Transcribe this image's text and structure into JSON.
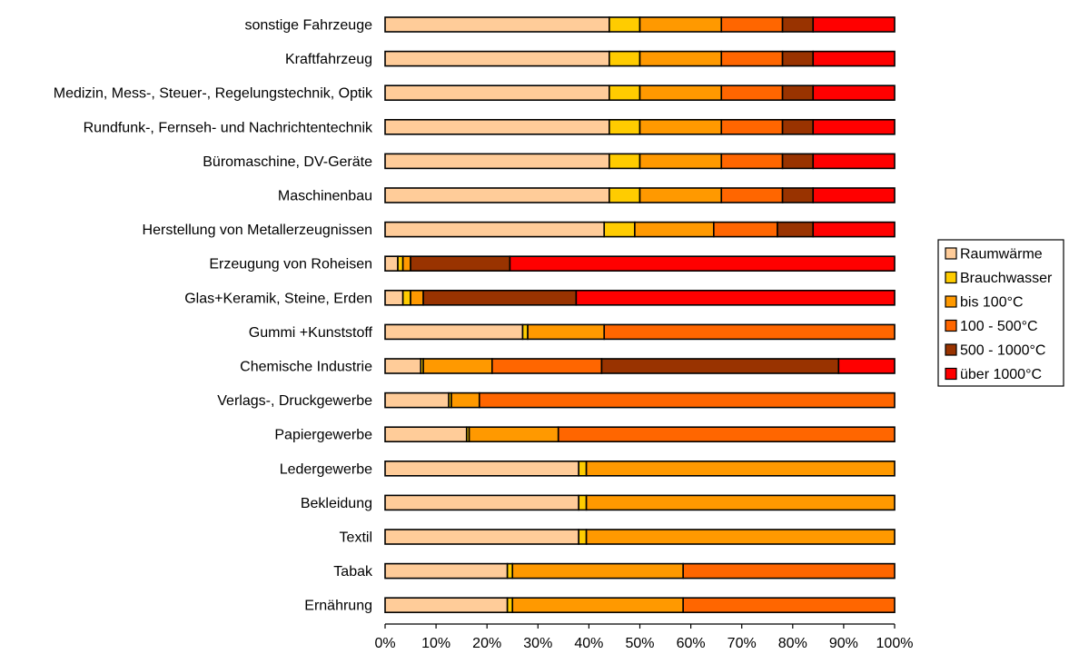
{
  "chart_data": {
    "type": "bar",
    "orientation": "horizontal",
    "stacked": "percent",
    "categories": [
      "sonstige Fahrzeuge",
      "Kraftfahrzeug",
      "Medizin, Mess-, Steuer-, Regelungstechnik, Optik",
      "Rundfunk-, Fernseh- und Nachrichtentechnik",
      "Büromaschine, DV-Geräte",
      "Maschinenbau",
      "Herstellung von Metallerzeugnissen",
      "Erzeugung von Roheisen",
      "Glas+Keramik, Steine, Erden",
      "Gummi +Kunststoff",
      "Chemische Industrie",
      "Verlags-, Druckgewerbe",
      "Papiergewerbe",
      "Ledergewerbe",
      "Bekleidung",
      "Textil",
      "Tabak",
      "Ernährung"
    ],
    "series": [
      {
        "name": "Raumwärme",
        "color": "#FFCC99",
        "values": [
          44,
          44,
          44,
          44,
          44,
          44,
          43,
          2.5,
          3.5,
          27,
          7,
          12.5,
          16,
          38,
          38,
          38,
          24,
          24
        ]
      },
      {
        "name": "Brauchwasser",
        "color": "#FFCC00",
        "values": [
          6,
          6,
          6,
          6,
          6,
          6,
          6,
          1,
          1.5,
          1,
          0.5,
          0.5,
          0.5,
          1.5,
          1.5,
          1.5,
          1,
          1
        ]
      },
      {
        "name": "bis 100°C",
        "color": "#FF9900",
        "values": [
          16,
          16,
          16,
          16,
          16,
          16,
          15.5,
          1.5,
          2.5,
          15,
          13.5,
          5.5,
          17.5,
          60.5,
          60.5,
          60.5,
          33.5,
          33.5
        ]
      },
      {
        "name": "100 - 500°C",
        "color": "#FF6600",
        "values": [
          12,
          12,
          12,
          12,
          12,
          12,
          12.5,
          0,
          0,
          57,
          21.5,
          81.5,
          66,
          0,
          0,
          0,
          41.5,
          41.5
        ]
      },
      {
        "name": "500 - 1000°C",
        "color": "#993300",
        "values": [
          6,
          6,
          6,
          6,
          6,
          6,
          7,
          19.5,
          30,
          0,
          46.5,
          0,
          0,
          0,
          0,
          0,
          0,
          0
        ]
      },
      {
        "name": "über 1000°C",
        "color": "#FF0000",
        "values": [
          16,
          16,
          16,
          16,
          16,
          16,
          16,
          75.5,
          62.5,
          0,
          11,
          0,
          0,
          0,
          0,
          0,
          0,
          0
        ]
      }
    ],
    "x_ticks": [
      "0%",
      "10%",
      "20%",
      "30%",
      "40%",
      "50%",
      "60%",
      "70%",
      "80%",
      "90%",
      "100%"
    ],
    "xlim": [
      0,
      100
    ],
    "title": "",
    "xlabel": "",
    "ylabel": "",
    "grid": false,
    "legend_position": "right"
  }
}
